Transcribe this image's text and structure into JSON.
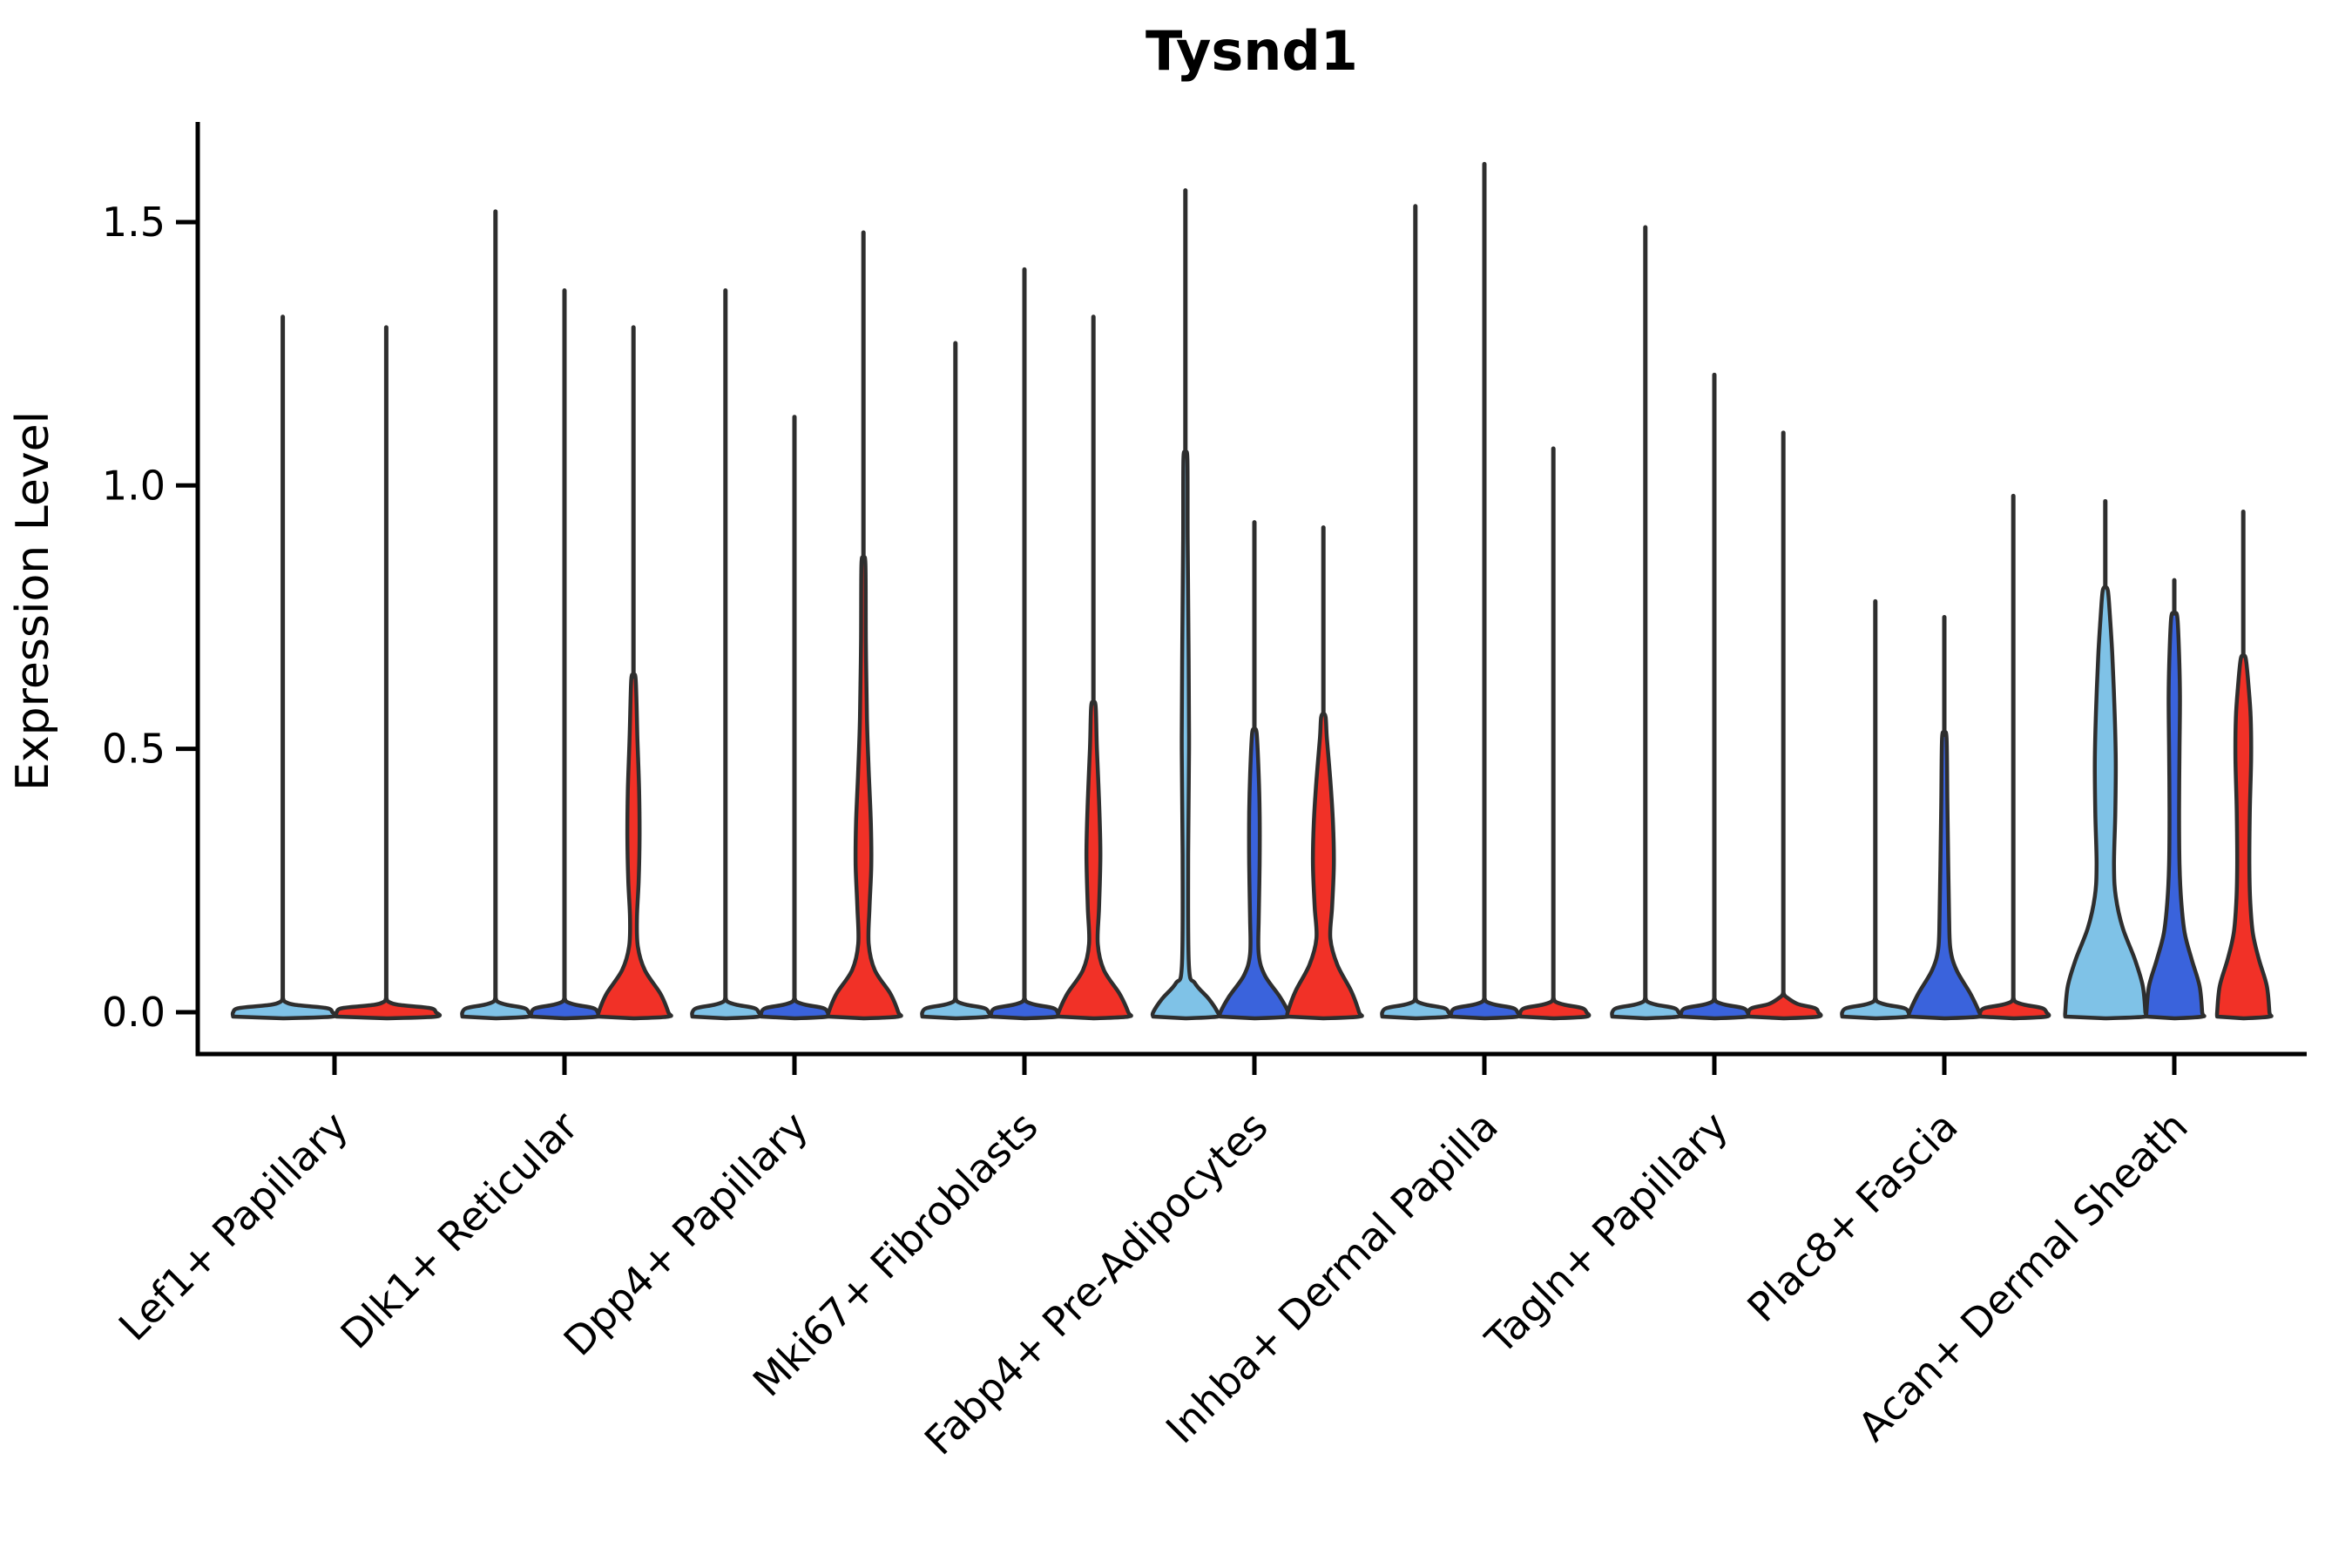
{
  "chart_data": {
    "type": "violin",
    "title": "Tysnd1",
    "ylabel": "Expression Level",
    "xlabel": "",
    "ylim": [
      0,
      1.69
    ],
    "yticks": [
      0.0,
      0.5,
      1.0,
      1.5
    ],
    "ytick_labels": [
      "0.0",
      "0.5",
      "1.0",
      "1.5"
    ],
    "grid": false,
    "legend": "none",
    "colors": {
      "lightblue": "#7fc2e7",
      "blue": "#3a63dc",
      "red": "#f13127",
      "outline": "#2e2e2e",
      "axis": "#000000"
    },
    "categories": [
      "Lef1+ Papillary",
      "Dlk1+ Reticular",
      "Dpp4+ Papillary",
      "Mki67+ Fibroblasts",
      "Fabp4+ Pre-Adipocytes",
      "Inhba+ Dermal Papilla",
      "Tagln+ Papillary",
      "Plac8+ Fascia",
      "Acan+ Dermal Sheath"
    ],
    "groups": [
      {
        "label": "Lef1+ Papillary",
        "violins": [
          {
            "color": "lightblue",
            "max": 1.32,
            "profile": [
              [
                0,
                57
              ],
              [
                0.008,
                50
              ],
              [
                0.014,
                14
              ],
              [
                0.02,
                2.5
              ]
            ]
          },
          {
            "color": "red",
            "max": 1.3,
            "profile": [
              [
                0,
                57
              ],
              [
                0.008,
                50
              ],
              [
                0.014,
                14
              ],
              [
                0.02,
                2.5
              ]
            ]
          }
        ]
      },
      {
        "label": "Dlk1+ Reticular",
        "violins": [
          {
            "color": "lightblue",
            "max": 1.52,
            "profile": [
              [
                0,
                38
              ],
              [
                0.008,
                33
              ],
              [
                0.014,
                13
              ],
              [
                0.02,
                2.5
              ]
            ]
          },
          {
            "color": "blue",
            "max": 1.37,
            "profile": [
              [
                0,
                38
              ],
              [
                0.008,
                33
              ],
              [
                0.014,
                13
              ],
              [
                0.02,
                2.5
              ]
            ]
          },
          {
            "color": "red",
            "max": 1.3,
            "profile": [
              [
                0,
                40
              ],
              [
                0.035,
                31
              ],
              [
                0.08,
                13
              ],
              [
                0.125,
                5
              ],
              [
                0.18,
                4
              ],
              [
                0.25,
                6
              ],
              [
                0.33,
                7
              ],
              [
                0.42,
                6.5
              ],
              [
                0.52,
                4.5
              ],
              [
                0.63,
                2.6
              ]
            ]
          }
        ]
      },
      {
        "label": "Dpp4+ Papillary",
        "violins": [
          {
            "color": "lightblue",
            "max": 1.37,
            "profile": [
              [
                0,
                38
              ],
              [
                0.008,
                33
              ],
              [
                0.014,
                13
              ],
              [
                0.02,
                2.5
              ]
            ]
          },
          {
            "color": "blue",
            "max": 1.13,
            "profile": [
              [
                0,
                38
              ],
              [
                0.008,
                33
              ],
              [
                0.014,
                13
              ],
              [
                0.02,
                2.5
              ]
            ]
          },
          {
            "color": "red",
            "max": 1.48,
            "profile": [
              [
                0,
                40
              ],
              [
                0.035,
                31
              ],
              [
                0.08,
                13
              ],
              [
                0.13,
                6
              ],
              [
                0.2,
                7
              ],
              [
                0.28,
                9
              ],
              [
                0.36,
                8.5
              ],
              [
                0.46,
                6
              ],
              [
                0.56,
                4
              ],
              [
                0.7,
                2.8
              ],
              [
                0.85,
                2.3
              ]
            ]
          }
        ]
      },
      {
        "label": "Mki67+ Fibroblasts",
        "violins": [
          {
            "color": "lightblue",
            "max": 1.27,
            "profile": [
              [
                0,
                38
              ],
              [
                0.008,
                33
              ],
              [
                0.014,
                13
              ],
              [
                0.02,
                2.5
              ]
            ]
          },
          {
            "color": "blue",
            "max": 1.41,
            "profile": [
              [
                0,
                38
              ],
              [
                0.008,
                33
              ],
              [
                0.014,
                13
              ],
              [
                0.02,
                2.5
              ]
            ]
          },
          {
            "color": "red",
            "max": 1.32,
            "profile": [
              [
                0,
                40
              ],
              [
                0.035,
                30
              ],
              [
                0.08,
                12
              ],
              [
                0.13,
                5
              ],
              [
                0.2,
                6.5
              ],
              [
                0.3,
                8
              ],
              [
                0.4,
                6.5
              ],
              [
                0.5,
                4
              ],
              [
                0.58,
                2.6
              ]
            ]
          }
        ]
      },
      {
        "label": "Fabp4+ Pre-Adipocytes",
        "violins": [
          {
            "color": "lightblue",
            "max": 1.56,
            "profile": [
              [
                0,
                37
              ],
              [
                0.025,
                27
              ],
              [
                0.055,
                11
              ],
              [
                0.09,
                4
              ],
              [
                0.3,
                3.2
              ],
              [
                0.5,
                4.2
              ],
              [
                0.7,
                3.6
              ],
              [
                0.9,
                2.6
              ],
              [
                1.05,
                2.3
              ]
            ]
          },
          {
            "color": "blue",
            "max": 0.93,
            "profile": [
              [
                0,
                39
              ],
              [
                0.03,
                29
              ],
              [
                0.07,
                12
              ],
              [
                0.11,
                5
              ],
              [
                0.18,
                5
              ],
              [
                0.28,
                6
              ],
              [
                0.38,
                6
              ],
              [
                0.47,
                4.5
              ],
              [
                0.53,
                2.6
              ]
            ]
          },
          {
            "color": "red",
            "max": 0.92,
            "profile": [
              [
                0,
                41
              ],
              [
                0.04,
                32
              ],
              [
                0.09,
                16
              ],
              [
                0.14,
                8
              ],
              [
                0.2,
                10
              ],
              [
                0.28,
                12
              ],
              [
                0.36,
                11
              ],
              [
                0.44,
                8
              ],
              [
                0.52,
                4
              ],
              [
                0.56,
                2.6
              ]
            ]
          }
        ]
      },
      {
        "label": "Inhba+ Dermal Papilla",
        "violins": [
          {
            "color": "lightblue",
            "max": 1.53,
            "profile": [
              [
                0,
                38
              ],
              [
                0.008,
                33
              ],
              [
                0.014,
                13
              ],
              [
                0.02,
                2.5
              ]
            ]
          },
          {
            "color": "blue",
            "max": 1.61,
            "profile": [
              [
                0,
                38
              ],
              [
                0.008,
                33
              ],
              [
                0.014,
                13
              ],
              [
                0.02,
                2.5
              ]
            ]
          },
          {
            "color": "red",
            "max": 1.07,
            "profile": [
              [
                0,
                38
              ],
              [
                0.008,
                33
              ],
              [
                0.014,
                13
              ],
              [
                0.02,
                2.5
              ]
            ]
          }
        ]
      },
      {
        "label": "Tagln+ Papillary",
        "violins": [
          {
            "color": "lightblue",
            "max": 1.49,
            "profile": [
              [
                0,
                38
              ],
              [
                0.008,
                33
              ],
              [
                0.014,
                13
              ],
              [
                0.02,
                2.5
              ]
            ]
          },
          {
            "color": "blue",
            "max": 1.21,
            "profile": [
              [
                0,
                38
              ],
              [
                0.008,
                33
              ],
              [
                0.014,
                13
              ],
              [
                0.02,
                2.5
              ]
            ]
          },
          {
            "color": "red",
            "max": 1.1,
            "profile": [
              [
                0,
                40
              ],
              [
                0.008,
                36
              ],
              [
                0.016,
                16
              ],
              [
                0.03,
                2.6
              ]
            ]
          }
        ]
      },
      {
        "label": "Plac8+ Fascia",
        "violins": [
          {
            "color": "lightblue",
            "max": 0.78,
            "profile": [
              [
                0,
                38
              ],
              [
                0.008,
                33
              ],
              [
                0.014,
                13
              ],
              [
                0.02,
                2.5
              ]
            ]
          },
          {
            "color": "blue",
            "max": 0.75,
            "profile": [
              [
                0,
                40
              ],
              [
                0.035,
                30
              ],
              [
                0.08,
                14
              ],
              [
                0.12,
                7
              ],
              [
                0.18,
                5.5
              ],
              [
                0.28,
                4.5
              ],
              [
                0.4,
                3.5
              ],
              [
                0.52,
                2.6
              ]
            ]
          },
          {
            "color": "red",
            "max": 0.98,
            "profile": [
              [
                0,
                38
              ],
              [
                0.008,
                33
              ],
              [
                0.014,
                13
              ],
              [
                0.02,
                2.5
              ]
            ]
          }
        ]
      },
      {
        "label": "Acan+ Dermal Sheath",
        "violins": [
          {
            "color": "lightblue",
            "max": 0.97,
            "profile": [
              [
                0,
                46
              ],
              [
                0.05,
                43
              ],
              [
                0.1,
                34
              ],
              [
                0.16,
                20
              ],
              [
                0.22,
                12
              ],
              [
                0.28,
                10
              ],
              [
                0.38,
                11.5
              ],
              [
                0.48,
                12
              ],
              [
                0.58,
                10.5
              ],
              [
                0.68,
                8
              ],
              [
                0.76,
                5
              ],
              [
                0.8,
                3
              ]
            ]
          },
          {
            "color": "blue",
            "max": 0.82,
            "profile": [
              [
                0,
                32
              ],
              [
                0.05,
                29
              ],
              [
                0.1,
                20
              ],
              [
                0.15,
                12
              ],
              [
                0.21,
                8
              ],
              [
                0.28,
                6
              ],
              [
                0.38,
                5.5
              ],
              [
                0.5,
                6
              ],
              [
                0.6,
                6.5
              ],
              [
                0.68,
                5.5
              ],
              [
                0.75,
                3.5
              ]
            ]
          },
          {
            "color": "red",
            "max": 0.95,
            "profile": [
              [
                0,
                30
              ],
              [
                0.05,
                27
              ],
              [
                0.1,
                18
              ],
              [
                0.15,
                11
              ],
              [
                0.21,
                8
              ],
              [
                0.28,
                7
              ],
              [
                0.38,
                7.5
              ],
              [
                0.48,
                9
              ],
              [
                0.56,
                8.5
              ],
              [
                0.62,
                6
              ],
              [
                0.67,
                3
              ]
            ]
          }
        ]
      }
    ]
  }
}
